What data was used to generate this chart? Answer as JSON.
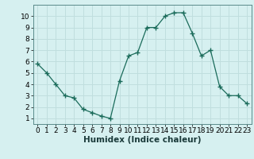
{
  "x": [
    0,
    1,
    2,
    3,
    4,
    5,
    6,
    7,
    8,
    9,
    10,
    11,
    12,
    13,
    14,
    15,
    16,
    17,
    18,
    19,
    20,
    21,
    22,
    23
  ],
  "y": [
    5.8,
    5.0,
    4.0,
    3.0,
    2.8,
    1.8,
    1.5,
    1.2,
    1.0,
    4.3,
    6.5,
    6.8,
    9.0,
    9.0,
    10.0,
    10.3,
    10.3,
    8.5,
    6.5,
    7.0,
    3.8,
    3.0,
    3.0,
    2.3
  ],
  "xlabel": "Humidex (Indice chaleur)",
  "ylim": [
    0.5,
    11.0
  ],
  "xlim": [
    -0.5,
    23.5
  ],
  "line_color": "#1a6b5a",
  "marker_color": "#1a6b5a",
  "bg_color": "#d6f0f0",
  "grid_color": "#c0dede",
  "yticks": [
    1,
    2,
    3,
    4,
    5,
    6,
    7,
    8,
    9,
    10
  ],
  "xticks": [
    0,
    1,
    2,
    3,
    4,
    5,
    6,
    7,
    8,
    9,
    10,
    11,
    12,
    13,
    14,
    15,
    16,
    17,
    18,
    19,
    20,
    21,
    22,
    23
  ],
  "tick_fontsize": 6.5,
  "xlabel_fontsize": 7.5
}
